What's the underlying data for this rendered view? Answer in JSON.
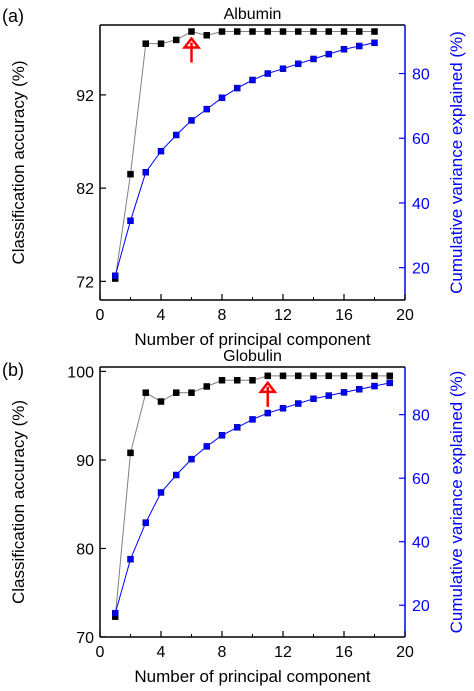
{
  "chart_data": [
    {
      "type": "line",
      "panel_label": "(a)",
      "title": "Albumin",
      "xlabel": "Number of principal component",
      "ylabel": "Classification accuracy (%)",
      "y2label": "Cumulative variance explained (%)",
      "xlim": [
        0,
        20
      ],
      "xticks": [
        "0",
        "4",
        "8",
        "12",
        "16",
        "20"
      ],
      "ylim": [
        70,
        99.5
      ],
      "yticks": [
        "72",
        "82",
        "92"
      ],
      "y2lim": [
        10,
        95
      ],
      "y2ticks": [
        "20",
        "40",
        "60",
        "80"
      ],
      "arrow_at_x": 6,
      "series": [
        {
          "axis": "left",
          "color": "#000000",
          "x": [
            1,
            2,
            3,
            4,
            5,
            6,
            7,
            8,
            9,
            10,
            11,
            12,
            13,
            14,
            15,
            16,
            17,
            18
          ],
          "values": [
            72.3,
            83.5,
            97.5,
            97.5,
            97.9,
            98.8,
            98.4,
            98.8,
            98.8,
            98.8,
            98.8,
            98.8,
            98.8,
            98.8,
            98.8,
            98.8,
            98.8,
            98.8
          ]
        },
        {
          "axis": "right",
          "color": "#0000ff",
          "x": [
            1,
            2,
            3,
            4,
            5,
            6,
            7,
            8,
            9,
            10,
            11,
            12,
            13,
            14,
            15,
            16,
            17,
            18
          ],
          "values": [
            17.5,
            34.5,
            49.5,
            56,
            61,
            65.5,
            69,
            72.5,
            75.5,
            78,
            80,
            81.5,
            83,
            84.5,
            86,
            87.5,
            88.5,
            89.5
          ]
        }
      ]
    },
    {
      "type": "line",
      "panel_label": "(b)",
      "title": "Globulin",
      "xlabel": "Number of principal component",
      "ylabel": "Classification accuracy (%)",
      "y2label": "Cumulative variance explained (%)",
      "xlim": [
        0,
        20
      ],
      "xticks": [
        "0",
        "4",
        "8",
        "12",
        "16",
        "20"
      ],
      "ylim": [
        70,
        100.5
      ],
      "yticks": [
        "70",
        "80",
        "90",
        "100"
      ],
      "y2lim": [
        10,
        95
      ],
      "y2ticks": [
        "20",
        "40",
        "60",
        "80"
      ],
      "arrow_at_x": 11,
      "series": [
        {
          "axis": "left",
          "color": "#000000",
          "x": [
            1,
            2,
            3,
            4,
            5,
            6,
            7,
            8,
            9,
            10,
            11,
            12,
            13,
            14,
            15,
            16,
            17,
            18,
            19
          ],
          "values": [
            72.3,
            90.8,
            97.6,
            96.6,
            97.6,
            97.6,
            98.3,
            99.0,
            99.0,
            99.0,
            99.5,
            99.5,
            99.5,
            99.5,
            99.5,
            99.5,
            99.5,
            99.5,
            99.5
          ]
        },
        {
          "axis": "right",
          "color": "#0000ff",
          "x": [
            1,
            2,
            3,
            4,
            5,
            6,
            7,
            8,
            9,
            10,
            11,
            12,
            13,
            14,
            15,
            16,
            17,
            18,
            19
          ],
          "values": [
            17.5,
            34.5,
            46,
            55.5,
            61,
            66,
            70,
            73.5,
            76,
            78.5,
            80.5,
            82,
            83.5,
            85,
            86,
            87,
            88,
            89,
            90
          ]
        }
      ]
    }
  ]
}
